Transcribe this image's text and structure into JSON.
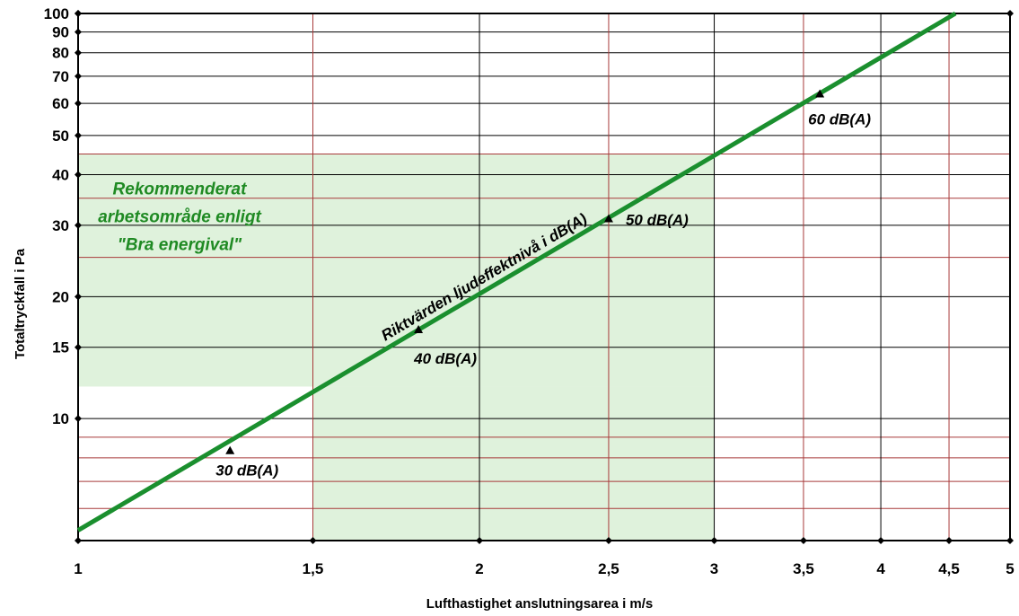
{
  "chart_data": {
    "type": "line",
    "xlabel": "Lufthastighet anslutningsarea i m/s",
    "ylabel": "Totaltryckfall i Pa",
    "xscale": "log",
    "yscale": "log",
    "xlim": [
      1,
      5
    ],
    "ylim": [
      5,
      100
    ],
    "x_ticks": [
      {
        "value": 1,
        "label": "1"
      },
      {
        "value": 1.5,
        "label": "1,5"
      },
      {
        "value": 2,
        "label": "2"
      },
      {
        "value": 2.5,
        "label": "2,5"
      },
      {
        "value": 3,
        "label": "3"
      },
      {
        "value": 3.5,
        "label": "3,5"
      },
      {
        "value": 4,
        "label": "4"
      },
      {
        "value": 4.5,
        "label": "4,5"
      },
      {
        "value": 5,
        "label": "5"
      }
    ],
    "y_ticks": [
      {
        "value": 10,
        "label": "10"
      },
      {
        "value": 15,
        "label": "15"
      },
      {
        "value": 20,
        "label": "20"
      },
      {
        "value": 30,
        "label": "30"
      },
      {
        "value": 40,
        "label": "40"
      },
      {
        "value": 50,
        "label": "50"
      },
      {
        "value": 60,
        "label": "60"
      },
      {
        "value": 70,
        "label": "70"
      },
      {
        "value": 80,
        "label": "80"
      },
      {
        "value": 90,
        "label": "90"
      },
      {
        "value": 100,
        "label": "100"
      }
    ],
    "minor_y_gridlines": [
      6,
      7,
      8,
      9,
      25,
      35,
      45
    ],
    "grid": true,
    "series": [
      {
        "name": "Riktvärden ljudeffektnivå i dB(A)",
        "x": [
          1,
          4.55
        ],
        "y": [
          5.3,
          100
        ],
        "color": "#1a8f2e"
      }
    ],
    "markers": [
      {
        "x": 1.3,
        "y": 8.3,
        "label": "30 dB(A)"
      },
      {
        "x": 1.8,
        "y": 16.5,
        "label": "40 dB(A)"
      },
      {
        "x": 2.5,
        "y": 31,
        "label": "50 dB(A)"
      },
      {
        "x": 3.6,
        "y": 63,
        "label": "60 dB(A)"
      }
    ],
    "region": {
      "label_lines": [
        "Rekommenderat",
        "arbetsområde enligt",
        "\"Bra energival\""
      ],
      "upper": {
        "x": [
          1,
          3
        ],
        "y": [
          12,
          45
        ]
      },
      "lower": {
        "x": [
          1.5,
          3
        ],
        "y": [
          5,
          12
        ]
      },
      "fill": "#dff2dc"
    },
    "colors": {
      "major_grid": "#000000",
      "minor_grid": "#a83a3a",
      "line": "#1a8f2e",
      "region_text": "#1f8a23"
    }
  }
}
